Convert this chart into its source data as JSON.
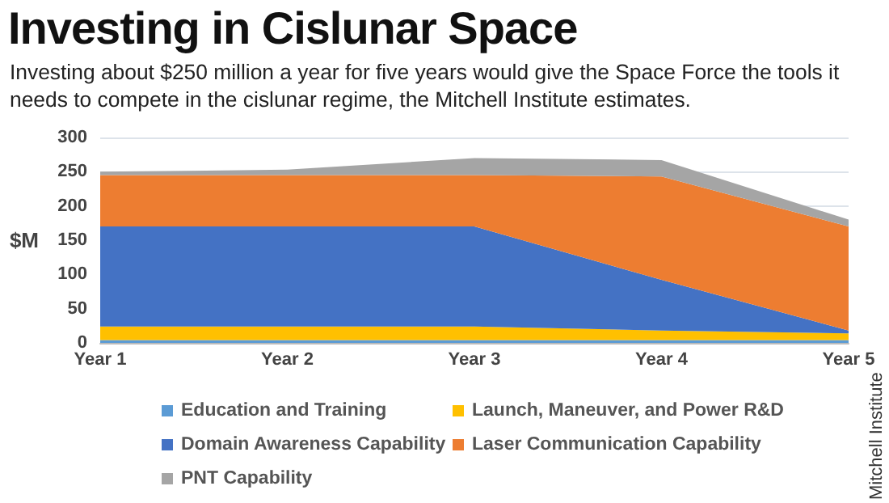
{
  "chart_data": {
    "type": "area",
    "title": "Investing in Cislunar Space",
    "subtitle": "Investing about $250 million a year for five years would give the Space Force the tools it needs to compete in the cislunar regime, the Mitchell Institute estimates.",
    "ylabel": "$M",
    "annotations": [
      "Mitchell Institute"
    ],
    "categories": [
      "Year 1",
      "Year 2",
      "Year 3",
      "Year 4",
      "Year 5"
    ],
    "stacked": true,
    "series": [
      {
        "name": "Education and Training",
        "color": "#5b9bd5",
        "values": [
          4,
          4,
          4,
          4,
          4
        ]
      },
      {
        "name": "Launch, Maneuver, and Power R&D",
        "color": "#ffc000",
        "values": [
          20,
          20,
          20,
          14,
          10
        ]
      },
      {
        "name": "Domain Awareness Capability",
        "color": "#4472c4",
        "values": [
          146,
          146,
          146,
          74,
          4
        ]
      },
      {
        "name": "Laser Communication Capability",
        "color": "#ed7d31",
        "values": [
          75,
          75,
          75,
          151,
          152
        ]
      },
      {
        "name": "PNT Capability",
        "color": "#a5a5a5",
        "values": [
          5,
          8,
          25,
          24,
          10
        ]
      }
    ],
    "ylim": [
      0,
      300
    ],
    "yticks": [
      0,
      50,
      100,
      150,
      200,
      250,
      300
    ],
    "grid": "y",
    "legend": "bottom",
    "marker": "none"
  }
}
